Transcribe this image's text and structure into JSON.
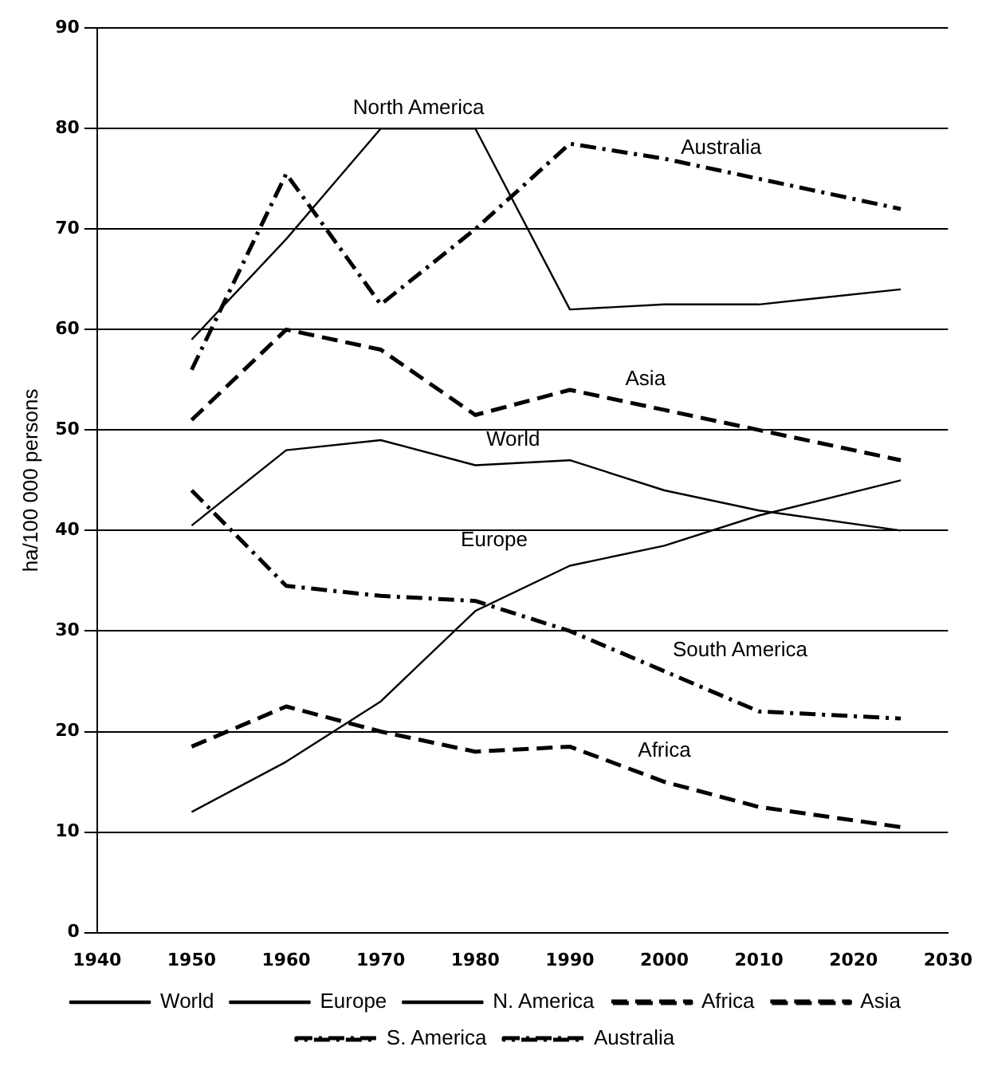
{
  "chart_data": {
    "type": "line",
    "ylabel": "ha/100 000 persons",
    "x": [
      1950,
      1960,
      1970,
      1980,
      1990,
      2000,
      2010,
      2025
    ],
    "xlim": [
      1940,
      2030
    ],
    "xticks": [
      1940,
      1950,
      1960,
      1970,
      1980,
      1990,
      2000,
      2010,
      2020,
      2030
    ],
    "ylim": [
      0,
      90
    ],
    "yticks": [
      0,
      10,
      20,
      30,
      40,
      50,
      60,
      70,
      80,
      90
    ],
    "grid": "y",
    "legend": "bottom",
    "marker": "none",
    "series": [
      {
        "name": "World",
        "color": "#000000",
        "line_style": "solid",
        "values": [
          40.5,
          48,
          49,
          46.5,
          47,
          44,
          42,
          40
        ]
      },
      {
        "name": "Europe",
        "color": "#000000",
        "line_style": "solid",
        "values": [
          12,
          17,
          23,
          32,
          36.5,
          38.5,
          41.5,
          45
        ]
      },
      {
        "name": "N. America",
        "color": "#000000",
        "line_style": "solid",
        "values": [
          59,
          69,
          80,
          80,
          62,
          62.5,
          62.5,
          64
        ]
      },
      {
        "name": "Africa",
        "color": "#000000",
        "line_style": "dashed",
        "values": [
          18.5,
          22.5,
          20,
          18,
          18.5,
          15,
          12.5,
          10.5
        ]
      },
      {
        "name": "Asia",
        "color": "#000000",
        "line_style": "dashed",
        "values": [
          51,
          60,
          58,
          51.5,
          54,
          52,
          50,
          47
        ]
      },
      {
        "name": "S. America",
        "color": "#000000",
        "line_style": "dotted",
        "values": [
          44,
          34.5,
          33.5,
          33,
          30,
          26,
          22,
          21.3
        ]
      },
      {
        "name": "Australia",
        "color": "#000000",
        "line_style": "dotted",
        "values": [
          56,
          75.5,
          62.5,
          70,
          78.5,
          77,
          75,
          72
        ]
      }
    ],
    "annotations": [
      "North America",
      "Australia",
      "Asia",
      "World",
      "Europe",
      "South America",
      "Africa"
    ]
  }
}
